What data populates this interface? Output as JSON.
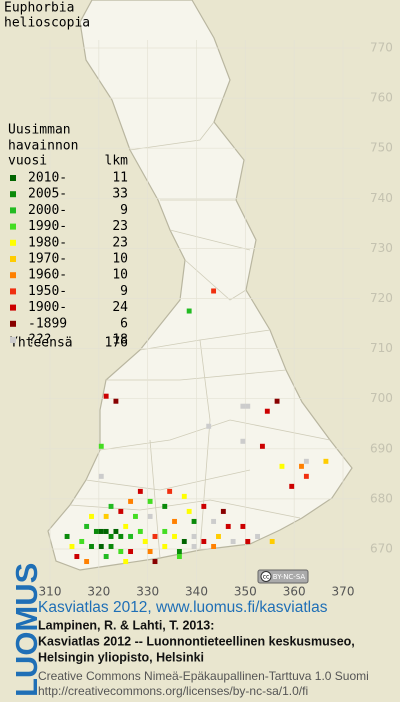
{
  "map": {
    "title_lines": [
      "Euphorbia",
      "helioscopia"
    ],
    "legend_header": [
      "Uusimman",
      "havainnon",
      "vuosi",
      "lkm"
    ],
    "legend": [
      {
        "label": "2010-",
        "count": 11,
        "color": "#006400"
      },
      {
        "label": "2005-",
        "count": 33,
        "color": "#0a8a0a"
      },
      {
        "label": "2000-",
        "count": 9,
        "color": "#22bb22"
      },
      {
        "label": "1990-",
        "count": 23,
        "color": "#44dd22"
      },
      {
        "label": "1980-",
        "count": 23,
        "color": "#ffff00"
      },
      {
        "label": "1970-",
        "count": 10,
        "color": "#ffcc00"
      },
      {
        "label": "1960-",
        "count": 10,
        "color": "#ff8000"
      },
      {
        "label": "1950-",
        "count": 9,
        "color": "#f03010"
      },
      {
        "label": "1900-",
        "count": 24,
        "color": "#cc0000"
      },
      {
        "label": "-1899",
        "count": 6,
        "color": "#880000"
      },
      {
        "label": "???",
        "count": 18,
        "color": "#cccccc"
      }
    ],
    "total_label": "Yhteensä",
    "total": 176,
    "xlim": [
      310,
      370
    ],
    "ylim": [
      670,
      770
    ],
    "xticks": [
      310,
      320,
      330,
      340,
      350,
      360,
      370
    ],
    "yticks": [
      670,
      680,
      690,
      700,
      710,
      720,
      730,
      740,
      750,
      760,
      770
    ],
    "squares": [
      [
        343,
        721,
        7
      ],
      [
        338,
        717,
        2
      ],
      [
        321,
        700,
        8
      ],
      [
        323,
        699,
        9
      ],
      [
        349,
        698,
        10
      ],
      [
        350,
        698,
        10
      ],
      [
        354,
        697,
        8
      ],
      [
        356,
        699,
        9
      ],
      [
        342,
        694,
        10
      ],
      [
        349,
        691,
        10
      ],
      [
        353,
        690,
        8
      ],
      [
        320,
        690,
        3
      ],
      [
        357,
        686,
        4
      ],
      [
        361,
        686,
        6
      ],
      [
        362,
        687,
        10
      ],
      [
        366,
        687,
        5
      ],
      [
        362,
        684,
        7
      ],
      [
        359,
        682,
        8
      ],
      [
        320,
        684,
        10
      ],
      [
        328,
        681,
        8
      ],
      [
        334,
        681,
        7
      ],
      [
        337,
        680,
        4
      ],
      [
        330,
        679,
        3
      ],
      [
        326,
        679,
        6
      ],
      [
        322,
        678,
        2
      ],
      [
        324,
        677,
        8
      ],
      [
        333,
        678,
        1
      ],
      [
        338,
        677,
        4
      ],
      [
        341,
        678,
        8
      ],
      [
        345,
        677,
        9
      ],
      [
        318,
        676,
        4
      ],
      [
        321,
        676,
        5
      ],
      [
        327,
        676,
        3
      ],
      [
        330,
        676,
        10
      ],
      [
        335,
        675,
        6
      ],
      [
        339,
        675,
        1
      ],
      [
        343,
        675,
        10
      ],
      [
        346,
        674,
        8
      ],
      [
        349,
        674,
        8
      ],
      [
        317,
        674,
        2
      ],
      [
        319,
        673,
        1
      ],
      [
        320,
        673,
        0
      ],
      [
        321,
        673,
        0
      ],
      [
        322,
        672,
        1
      ],
      [
        323,
        673,
        0
      ],
      [
        324,
        672,
        1
      ],
      [
        325,
        674,
        4
      ],
      [
        326,
        672,
        2
      ],
      [
        328,
        673,
        3
      ],
      [
        329,
        671,
        4
      ],
      [
        331,
        672,
        7
      ],
      [
        333,
        673,
        3
      ],
      [
        335,
        672,
        4
      ],
      [
        337,
        671,
        0
      ],
      [
        339,
        672,
        10
      ],
      [
        341,
        671,
        8
      ],
      [
        344,
        672,
        5
      ],
      [
        347,
        671,
        10
      ],
      [
        350,
        671,
        8
      ],
      [
        352,
        672,
        10
      ],
      [
        355,
        671,
        5
      ],
      [
        316,
        671,
        3
      ],
      [
        318,
        670,
        1
      ],
      [
        320,
        670,
        0
      ],
      [
        322,
        670,
        1
      ],
      [
        324,
        669,
        3
      ],
      [
        326,
        669,
        8
      ],
      [
        330,
        669,
        6
      ],
      [
        333,
        670,
        4
      ],
      [
        336,
        669,
        1
      ],
      [
        339,
        670,
        10
      ],
      [
        343,
        670,
        6
      ],
      [
        314,
        670,
        4
      ],
      [
        313,
        672,
        1
      ],
      [
        315,
        668,
        8
      ],
      [
        317,
        667,
        6
      ],
      [
        321,
        668,
        2
      ],
      [
        325,
        667,
        4
      ],
      [
        331,
        667,
        9
      ],
      [
        336,
        668,
        3
      ]
    ],
    "license_badge": [
      "cc",
      "BY-NC-SA"
    ],
    "logo": "LUOMUS",
    "footer": {
      "link": "Kasviatlas 2012, www.luomus.fi/kasviatlas",
      "citation": [
        "Lampinen, R. & Lahti, T. 2013:",
        "Kasviatlas 2012 -- Luonnontieteellinen keskusmuseo,",
        "Helsingin yliopisto, Helsinki"
      ],
      "license": [
        "Creative Commons Nimeä-Epäkaupallinen-Tarttuva 1.0 Suomi",
        "http://creativecommons.org/licenses/by-nc-sa/1.0/fi"
      ]
    }
  }
}
